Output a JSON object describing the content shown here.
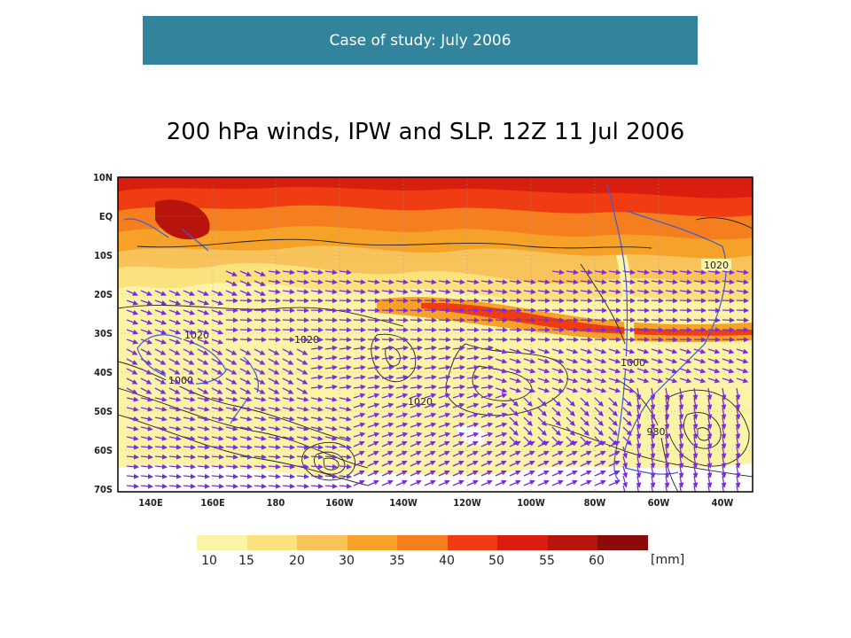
{
  "banner": {
    "text": "Case of study: July 2006",
    "color": "#31849b"
  },
  "map": {
    "title": "200 hPa winds, IPW and SLP. 12Z 11 Jul 2006",
    "lat_labels": [
      "10N",
      "EQ",
      "10S",
      "20S",
      "30S",
      "40S",
      "50S",
      "60S",
      "70S"
    ],
    "lon_labels": [
      "140E",
      "160E",
      "180",
      "160W",
      "140W",
      "120W",
      "100W",
      "80W",
      "60W",
      "40W"
    ],
    "contour_labels": [
      "1020",
      "1020",
      "1020",
      "1020",
      "1000",
      "1000",
      "980"
    ],
    "wind_arrow_color": "#7b2be0",
    "contour_color": "#222222",
    "coast_color": "#3b5bdb"
  },
  "legend": {
    "unit": "[mm]",
    "ticks": [
      "10",
      "15",
      "20",
      "30",
      "35",
      "40",
      "50",
      "55",
      "60"
    ],
    "colors": [
      "#fbf3a6",
      "#fbe27e",
      "#f8c35a",
      "#f6a128",
      "#f57f1f",
      "#ef3c12",
      "#d91e0f",
      "#b8140e",
      "#8b0a0a"
    ]
  }
}
